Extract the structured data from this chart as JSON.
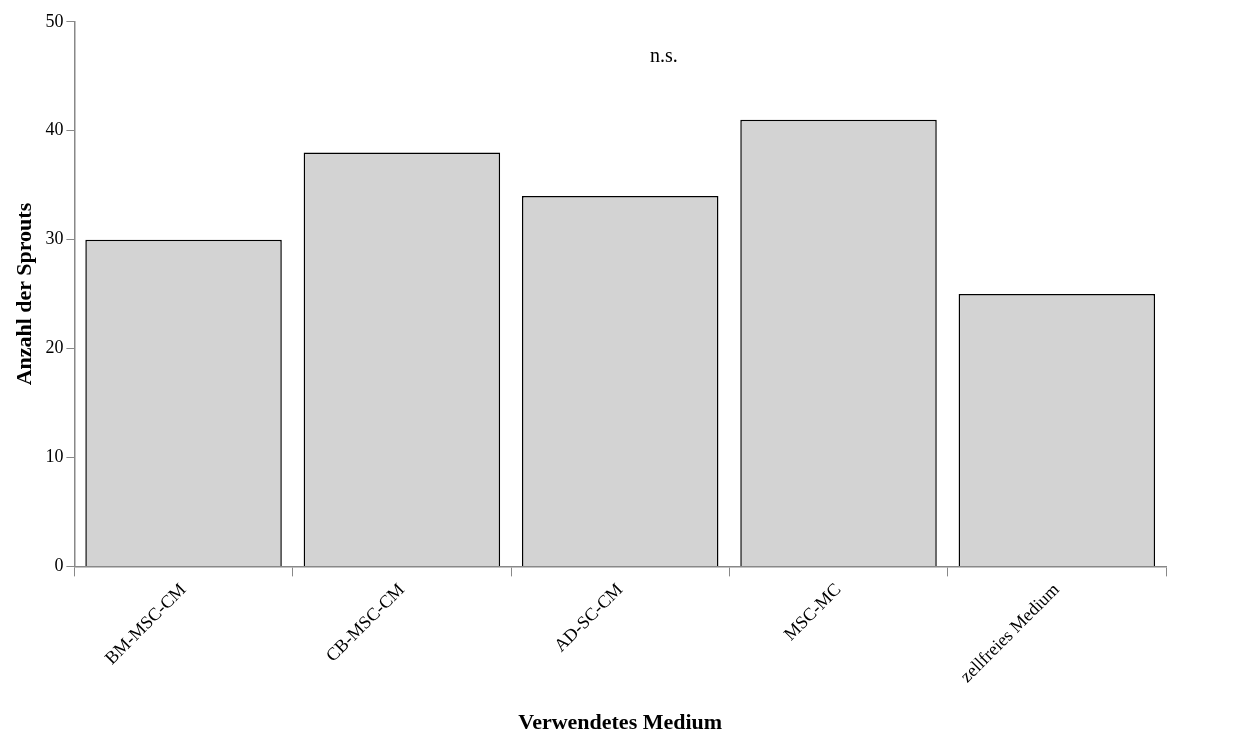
{
  "chart_data": {
    "type": "bar",
    "xlabel": "Verwendetes Medium",
    "ylabel": "Anzahl der Sprouts",
    "categories": [
      "BM-MSC-CM",
      "CB-MSC-CM",
      "AD-SC-CM",
      "MSC-MC",
      "zellfreies Medium"
    ],
    "values": [
      30,
      38,
      34,
      41,
      25
    ],
    "color": "#d3d3d3",
    "ylim": [
      0,
      50
    ],
    "yticks": [
      0,
      10,
      20,
      30,
      40,
      50
    ],
    "grid": false,
    "legend": false,
    "annotations": [
      "n.s."
    ]
  }
}
